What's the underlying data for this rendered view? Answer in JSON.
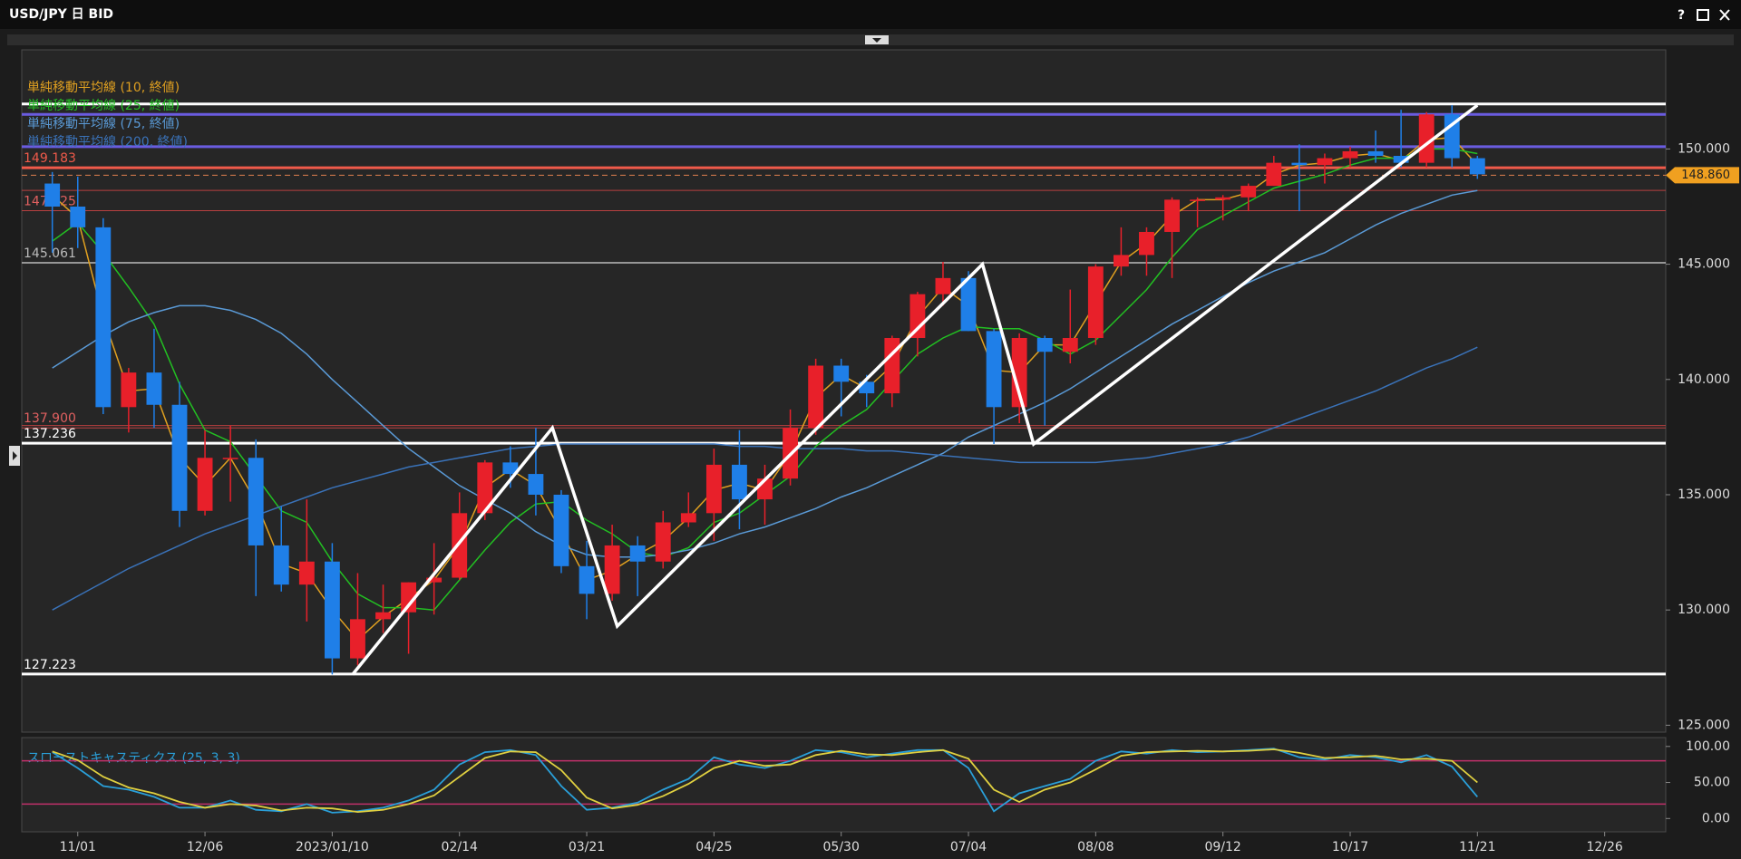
{
  "chart_data": {
    "type": "candlestick",
    "title": "USD/JPY 日 BID",
    "window_help": "?",
    "categories": [
      null,
      "11/01",
      null,
      null,
      null,
      null,
      "12/06",
      null,
      null,
      null,
      null,
      "2023/01/10",
      null,
      null,
      null,
      null,
      "02/14",
      null,
      null,
      null,
      null,
      "03/21",
      null,
      null,
      null,
      null,
      "04/25",
      null,
      null,
      null,
      null,
      "05/30",
      null,
      null,
      null,
      null,
      "07/04",
      null,
      null,
      null,
      null,
      "08/08",
      null,
      null,
      null,
      null,
      "09/12",
      null,
      null,
      null,
      null,
      "10/17",
      null,
      null,
      null,
      null,
      "11/21",
      null,
      null,
      null,
      null,
      "12/26"
    ],
    "open": [
      148.5,
      147.5,
      146.6,
      138.8,
      140.3,
      138.9,
      134.3,
      136.6,
      136.6,
      132.8,
      131.1,
      132.1,
      127.9,
      129.6,
      129.9,
      131.2,
      131.4,
      134.2,
      136.4,
      135.9,
      135.0,
      131.9,
      130.7,
      132.8,
      132.1,
      133.8,
      134.2,
      136.3,
      134.8,
      135.7,
      137.9,
      140.6,
      139.9,
      139.4,
      141.8,
      143.7,
      144.4,
      142.1,
      138.8,
      141.8,
      141.2,
      141.8,
      144.9,
      145.4,
      146.4,
      147.8,
      147.8,
      147.9,
      148.4,
      149.4,
      149.3,
      149.6,
      149.9,
      149.7,
      149.4,
      151.5,
      149.6,
      null,
      null,
      null,
      null,
      null
    ],
    "high": [
      149.0,
      148.8,
      147.0,
      140.5,
      142.2,
      139.9,
      137.8,
      138.0,
      137.4,
      134.5,
      134.8,
      132.9,
      131.6,
      131.1,
      131.2,
      132.9,
      135.1,
      136.5,
      137.1,
      137.9,
      135.2,
      133.0,
      133.7,
      133.2,
      134.3,
      135.1,
      137.0,
      137.8,
      136.3,
      138.7,
      140.9,
      140.9,
      140.2,
      141.9,
      143.8,
      145.1,
      144.7,
      142.2,
      142.0,
      141.9,
      143.9,
      145.0,
      146.6,
      146.6,
      147.9,
      147.9,
      148.0,
      148.5,
      149.7,
      150.2,
      149.8,
      150.1,
      150.8,
      151.7,
      151.6,
      151.9,
      149.7,
      null,
      null,
      null,
      null,
      null
    ],
    "low": [
      145.5,
      145.7,
      138.5,
      137.7,
      137.9,
      133.6,
      134.1,
      134.7,
      130.6,
      130.8,
      129.5,
      127.2,
      127.6,
      129.0,
      128.1,
      129.8,
      131.3,
      133.9,
      135.3,
      134.1,
      131.6,
      129.6,
      130.4,
      130.6,
      131.8,
      133.6,
      133.0,
      133.5,
      133.7,
      135.4,
      137.6,
      138.4,
      138.8,
      138.8,
      141.0,
      143.2,
      142.1,
      137.2,
      138.1,
      138.0,
      140.7,
      141.5,
      144.5,
      144.5,
      144.4,
      146.6,
      146.9,
      147.3,
      148.4,
      147.3,
      148.5,
      149.2,
      149.4,
      149.2,
      149.2,
      149.2,
      148.7,
      null,
      null,
      null,
      null,
      null
    ],
    "close": [
      147.5,
      146.6,
      138.8,
      140.3,
      138.9,
      134.3,
      136.6,
      136.6,
      132.8,
      131.1,
      132.1,
      127.9,
      129.6,
      129.9,
      131.2,
      131.4,
      134.2,
      136.4,
      135.9,
      135.0,
      131.9,
      130.7,
      132.8,
      132.1,
      133.8,
      134.2,
      136.3,
      134.8,
      135.7,
      137.9,
      140.6,
      139.9,
      139.4,
      141.8,
      143.7,
      144.4,
      142.1,
      138.8,
      141.8,
      141.2,
      141.8,
      144.9,
      145.4,
      146.4,
      147.8,
      147.8,
      147.9,
      148.4,
      149.4,
      149.3,
      149.6,
      149.9,
      149.7,
      149.4,
      151.5,
      149.6,
      148.9,
      null,
      null,
      null,
      null,
      null
    ],
    "up_color": "#e8202a",
    "down_color": "#1f7fe8",
    "series": [
      {
        "name": "単純移動平均線 (10, 終値)",
        "color": "#e0a020",
        "values": [
          148.0,
          147.0,
          142.7,
          139.5,
          139.6,
          136.6,
          135.4,
          136.6,
          134.7,
          132.0,
          131.6,
          130.0,
          128.7,
          129.7,
          130.5,
          131.3,
          132.8,
          135.3,
          136.1,
          135.4,
          133.4,
          131.3,
          131.7,
          132.4,
          133.0,
          134.0,
          135.2,
          135.5,
          135.2,
          136.8,
          139.2,
          140.2,
          139.6,
          140.6,
          142.7,
          144.0,
          143.2,
          140.4,
          140.3,
          141.5,
          141.5,
          143.3,
          145.1,
          145.9,
          147.1,
          147.8,
          147.8,
          148.1,
          148.9,
          149.3,
          149.4,
          149.7,
          149.8,
          149.5,
          150.4,
          150.5,
          149.3,
          null,
          null,
          null,
          null,
          null
        ]
      },
      {
        "name": "単純移動平均線 (25, 終値)",
        "color": "#22c022",
        "values": [
          146.0,
          146.8,
          145.5,
          144.0,
          142.4,
          139.8,
          137.8,
          137.3,
          135.8,
          134.3,
          133.8,
          132.1,
          130.7,
          130.1,
          130.1,
          130.0,
          131.3,
          132.6,
          133.8,
          134.6,
          134.7,
          133.9,
          133.3,
          132.5,
          132.3,
          132.7,
          133.8,
          134.2,
          135.0,
          135.8,
          137.1,
          138.0,
          138.7,
          139.9,
          141.1,
          141.8,
          142.3,
          142.2,
          142.2,
          141.7,
          141.1,
          141.7,
          142.8,
          143.9,
          145.3,
          146.5,
          147.1,
          147.7,
          148.3,
          148.6,
          148.9,
          149.3,
          149.6,
          149.6,
          150.0,
          150.0,
          149.8,
          null,
          null,
          null,
          null,
          null
        ]
      },
      {
        "name": "単純移動平均線 (75, 終値)",
        "color": "#5a9ad6",
        "values": [
          140.5,
          141.2,
          141.9,
          142.5,
          142.9,
          143.2,
          143.2,
          143.0,
          142.6,
          142.0,
          141.1,
          140.0,
          139.0,
          138.0,
          137.0,
          136.2,
          135.4,
          134.8,
          134.2,
          133.4,
          132.8,
          132.4,
          132.3,
          132.3,
          132.4,
          132.6,
          132.9,
          133.3,
          133.6,
          134.0,
          134.4,
          134.9,
          135.3,
          135.8,
          136.3,
          136.8,
          137.5,
          138.0,
          138.5,
          139.0,
          139.6,
          140.3,
          141.0,
          141.7,
          142.4,
          143.0,
          143.6,
          144.2,
          144.7,
          145.1,
          145.5,
          146.1,
          146.7,
          147.2,
          147.6,
          148.0,
          148.2,
          null,
          null,
          null,
          null,
          null
        ]
      },
      {
        "name": "単純移動平均線 (200, 終値)",
        "color": "#3a72b8",
        "values": [
          130.0,
          130.6,
          131.2,
          131.8,
          132.3,
          132.8,
          133.3,
          133.7,
          134.1,
          134.5,
          134.9,
          135.3,
          135.6,
          135.9,
          136.2,
          136.4,
          136.6,
          136.8,
          137.0,
          137.1,
          137.2,
          137.2,
          137.2,
          137.2,
          137.2,
          137.2,
          137.2,
          137.1,
          137.1,
          137.0,
          137.0,
          137.0,
          136.9,
          136.9,
          136.8,
          136.7,
          136.6,
          136.5,
          136.4,
          136.4,
          136.4,
          136.4,
          136.5,
          136.6,
          136.8,
          137.0,
          137.2,
          137.5,
          137.9,
          138.3,
          138.7,
          139.1,
          139.5,
          140.0,
          140.5,
          140.9,
          141.4,
          null,
          null,
          null,
          null,
          null
        ]
      }
    ],
    "levels": [
      {
        "value": 151.95,
        "color": "#ffffff",
        "width": 3
      },
      {
        "value": 151.5,
        "color": "#6a5ce0",
        "width": 3
      },
      {
        "value": 150.1,
        "color": "#6a5ce0",
        "width": 3
      },
      {
        "value": 149.183,
        "color": "#f05a4a",
        "width": 3,
        "label": "149.183"
      },
      {
        "value": 148.86,
        "color": "#e08050",
        "width": 1,
        "dash": true
      },
      {
        "value": 148.2,
        "color": "#b84040",
        "width": 1
      },
      {
        "value": 147.325,
        "color": "#b84040",
        "width": 1,
        "label": "147.325"
      },
      {
        "value": 145.061,
        "color": "#bbbbbb",
        "width": 1.5,
        "label": "145.061"
      },
      {
        "value": 138.0,
        "color": "#b84040",
        "width": 1
      },
      {
        "value": 137.9,
        "color": "#b84040",
        "width": 1,
        "label": "137.900"
      },
      {
        "value": 137.236,
        "color": "#ffffff",
        "width": 3,
        "label": "137.236"
      },
      {
        "value": 127.223,
        "color": "#ffffff",
        "width": 3,
        "label": "127.223"
      }
    ],
    "trendline": {
      "color": "#ffffff",
      "x": [
        11.8,
        19.65,
        22.2,
        36.55,
        38.56,
        56.0
      ],
      "values": [
        127.2,
        137.9,
        129.3,
        145.0,
        137.2,
        151.9
      ]
    },
    "last_price": {
      "value": 148.86,
      "label": "148.860",
      "color": "#f0a020"
    },
    "xlim": [
      -1.2,
      63.4
    ],
    "ylim": [
      124.7,
      154.3
    ],
    "yticks": [
      {
        "value": 125,
        "label": "125.000"
      },
      {
        "value": 130,
        "label": "130.000"
      },
      {
        "value": 135,
        "label": "135.000"
      },
      {
        "value": 140,
        "label": "140.000"
      },
      {
        "value": 145,
        "label": "145.000"
      },
      {
        "value": 150,
        "label": "150.000"
      }
    ],
    "indicator": {
      "type": "line",
      "name": "スローストキャスティクス (25, 3, 3)",
      "series": [
        {
          "color": "#2a9fd8",
          "values": [
            92,
            70,
            45,
            40,
            30,
            15,
            15,
            25,
            12,
            10,
            20,
            8,
            10,
            15,
            25,
            40,
            75,
            92,
            95,
            88,
            45,
            12,
            15,
            22,
            40,
            55,
            85,
            75,
            70,
            80,
            95,
            92,
            85,
            90,
            95,
            95,
            70,
            10,
            35,
            45,
            55,
            80,
            93,
            90,
            95,
            92,
            93,
            95,
            97,
            85,
            82,
            88,
            85,
            78,
            88,
            72,
            30,
            null,
            null,
            null,
            null,
            null
          ]
        },
        {
          "color": "#e0d040",
          "values": [
            93,
            81,
            58,
            43,
            35,
            23,
            15,
            20,
            18,
            11,
            15,
            14,
            9,
            12,
            20,
            32,
            58,
            84,
            93,
            92,
            67,
            29,
            14,
            19,
            31,
            48,
            70,
            80,
            73,
            75,
            88,
            94,
            89,
            88,
            92,
            95,
            83,
            40,
            23,
            40,
            50,
            68,
            87,
            92,
            93,
            94,
            93,
            94,
            96,
            91,
            84,
            85,
            87,
            82,
            83,
            80,
            50,
            null,
            null,
            null,
            null,
            null
          ]
        }
      ],
      "levels": [
        20,
        80
      ],
      "level_color": "#c0306a",
      "ylim": [
        -18.5,
        112.3
      ],
      "yticks": [
        {
          "value": 0,
          "label": "0.00"
        },
        {
          "value": 50,
          "label": "50.00"
        },
        {
          "value": 100,
          "label": "100.00"
        }
      ]
    }
  }
}
